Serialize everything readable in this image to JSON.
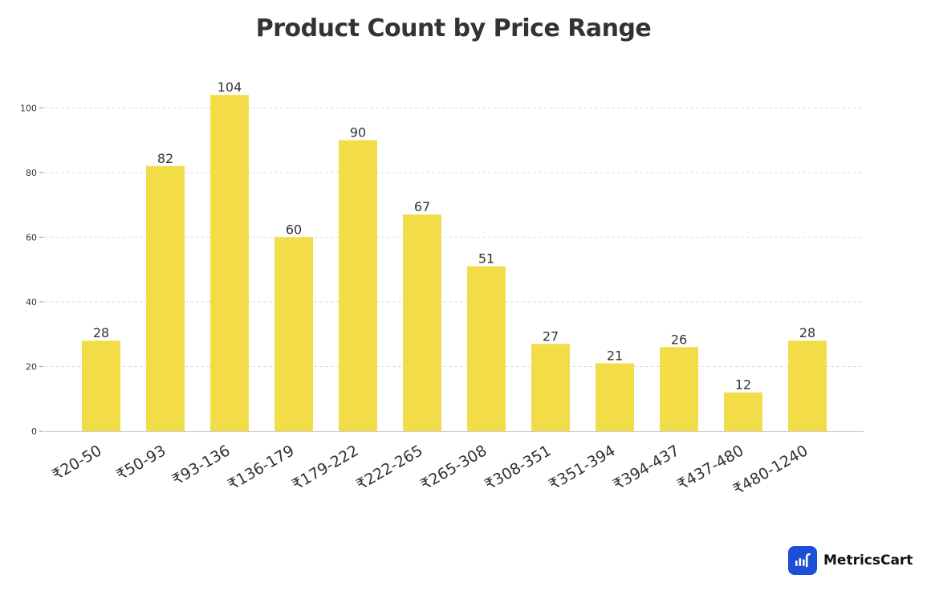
{
  "chart_data": {
    "type": "bar",
    "title": "Product Count by Price Range",
    "xlabel": "",
    "ylabel": "",
    "categories": [
      "₹20-50",
      "₹50-93",
      "₹93-136",
      "₹136-179",
      "₹179-222",
      "₹222-265",
      "₹265-308",
      "₹308-351",
      "₹351-394",
      "₹394-437",
      "₹437-480",
      "₹480-1240"
    ],
    "values": [
      28,
      82,
      104,
      60,
      90,
      67,
      51,
      27,
      21,
      26,
      12,
      28
    ],
    "ylim": [
      0,
      110
    ],
    "yticks": [
      0,
      20,
      40,
      60,
      80,
      100
    ],
    "grid": true,
    "legend": "none",
    "bar_color": "#f2dd49",
    "grid_color": "#dddddd",
    "axis_color": "#cccccc",
    "text_color": "#333333"
  },
  "brand": {
    "name": "MetricsCart",
    "logo_icon": "bar-chart-icon",
    "logo_color": "#1d4ed8"
  }
}
